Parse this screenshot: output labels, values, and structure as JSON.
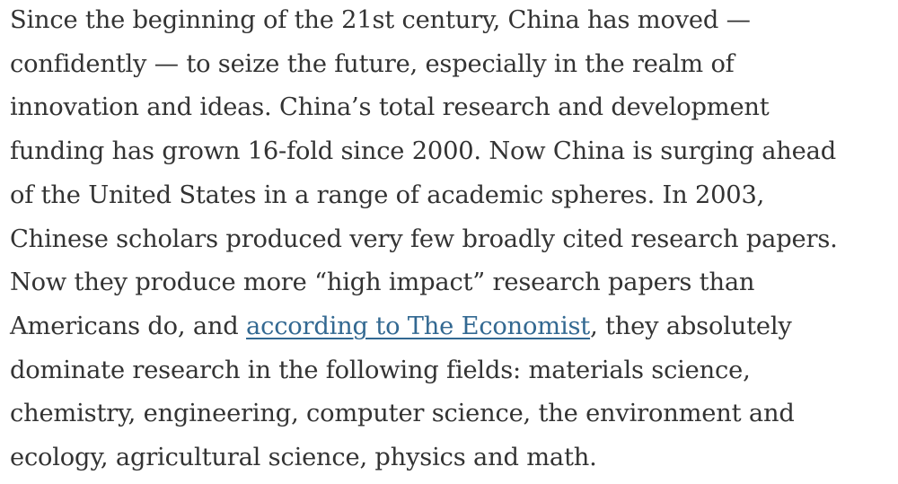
{
  "article": {
    "lines": [
      "Since the beginning of the 21st century, China has moved —",
      "confidently — to seize the future, especially in the realm of",
      "innovation and ideas. China’s total research and development",
      "funding has grown 16-fold since 2000. Now China is surging ahead",
      "of the United States in a range of academic spheres. In 2003,",
      "Chinese scholars produced very few broadly cited research papers.",
      "Now they produce more “high impact” research papers than"
    ],
    "link_line": {
      "before": "Americans do, and ",
      "link_text": "according to The Economist",
      "after": ", they absolutely"
    },
    "tail_lines": [
      "dominate research in the following fields: materials science,",
      "chemistry, engineering, computer science, the environment and",
      "ecology, agricultural science, physics and math."
    ]
  },
  "colors": {
    "text": "#333333",
    "link": "#326891",
    "background": "#ffffff"
  }
}
